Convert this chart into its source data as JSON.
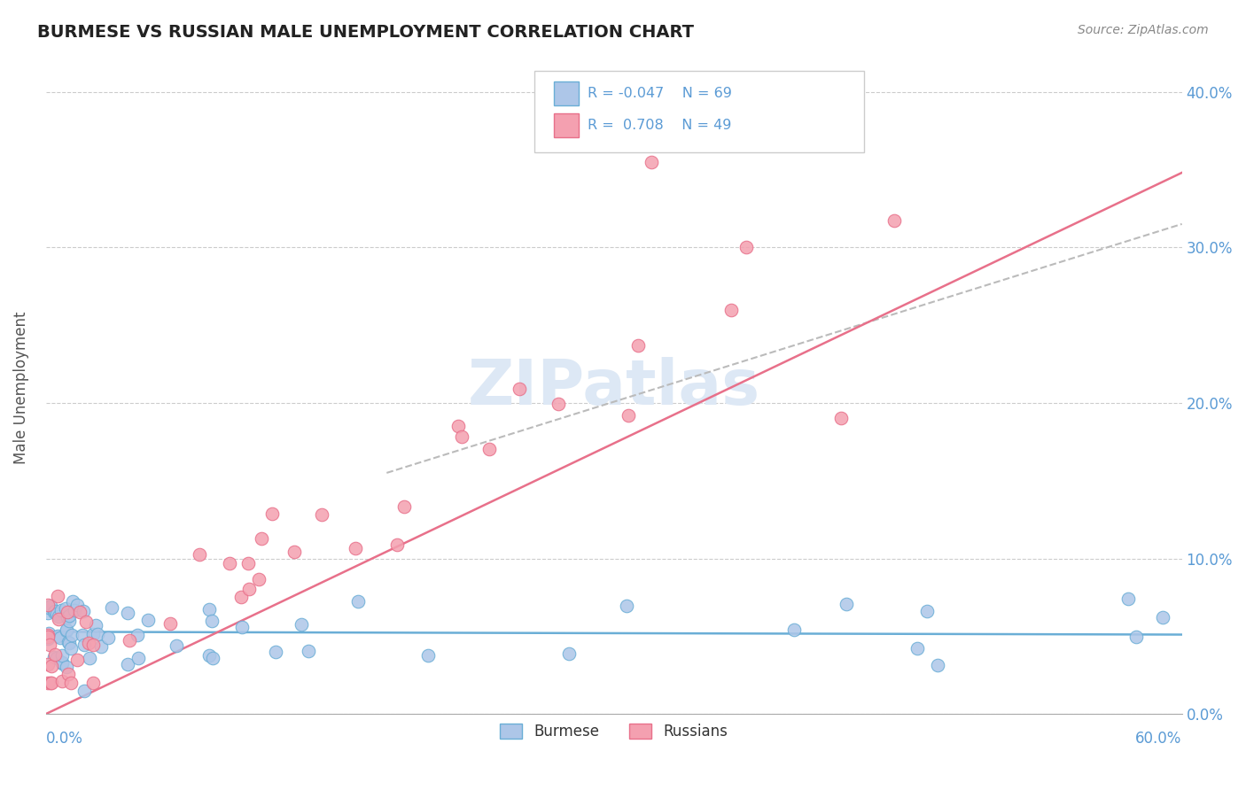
{
  "title": "BURMESE VS RUSSIAN MALE UNEMPLOYMENT CORRELATION CHART",
  "source": "Source: ZipAtlas.com",
  "ylabel": "Male Unemployment",
  "legend_burmese_R": "-0.047",
  "legend_burmese_N": "69",
  "legend_russian_R": "0.708",
  "legend_russian_N": "49",
  "xlim": [
    0.0,
    0.6
  ],
  "ylim": [
    0.0,
    0.42
  ],
  "yticks": [
    0.0,
    0.1,
    0.2,
    0.3,
    0.4
  ],
  "ytick_labels": [
    "0.0%",
    "10.0%",
    "20.0%",
    "30.0%",
    "40.0%"
  ],
  "burmese_color": "#adc6e8",
  "russian_color": "#f4a0b0",
  "burmese_edge_color": "#6aaed6",
  "russian_edge_color": "#e8708a",
  "burmese_line_color": "#6aaed6",
  "russian_line_color": "#e8708a",
  "gray_line_color": "#bbbbbb",
  "right_label_color": "#5b9bd5",
  "title_color": "#222222",
  "source_color": "#888888",
  "watermark_color": "#dde8f5"
}
